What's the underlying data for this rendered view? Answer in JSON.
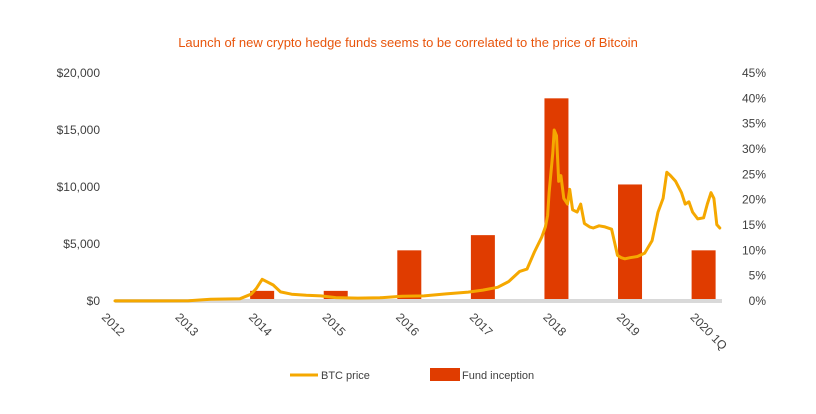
{
  "chart_data": {
    "type": "bar+line",
    "title": "Launch of new crypto  hedge funds seems to be correlated to the price of Bitcoin",
    "x_ticks": [
      "2012",
      "2013",
      "2014",
      "2015",
      "2016",
      "2017",
      "2018",
      "2019",
      "2020 1Q"
    ],
    "y_left_ticks": [
      "$0",
      "$5,000",
      "$10,000",
      "$15,000",
      "$20,000"
    ],
    "y_right_ticks": [
      "0%",
      "5%",
      "10%",
      "15%",
      "20%",
      "25%",
      "30%",
      "35%",
      "40%",
      "45%"
    ],
    "y_left_range": [
      0,
      20000
    ],
    "y_right_range": [
      0,
      45
    ],
    "x_range": [
      2012,
      2020.25
    ],
    "legend_position": "bottom",
    "colors": {
      "btc": "#f5a800",
      "fund": "#e03c00",
      "title": "#e8550c",
      "baseline": "#d9d9d9"
    },
    "series": [
      {
        "name": "BTC price",
        "type": "line",
        "axis": "left",
        "x": [
          2012.0,
          2012.5,
          2013.0,
          2013.3,
          2013.7,
          2013.85,
          2013.92,
          2014.0,
          2014.15,
          2014.25,
          2014.4,
          2014.6,
          2014.8,
          2015.0,
          2015.3,
          2015.6,
          2015.9,
          2016.0,
          2016.2,
          2016.5,
          2016.8,
          2017.0,
          2017.2,
          2017.35,
          2017.5,
          2017.6,
          2017.7,
          2017.8,
          2017.85,
          2017.88,
          2017.9,
          2017.95,
          2017.97,
          2018.0,
          2018.03,
          2018.06,
          2018.1,
          2018.15,
          2018.18,
          2018.22,
          2018.28,
          2018.33,
          2018.38,
          2018.45,
          2018.5,
          2018.58,
          2018.66,
          2018.75,
          2018.83,
          2018.88,
          2018.93,
          2019.0,
          2019.1,
          2019.2,
          2019.3,
          2019.38,
          2019.45,
          2019.5,
          2019.55,
          2019.62,
          2019.7,
          2019.75,
          2019.8,
          2019.85,
          2019.92,
          2020.0,
          2020.05,
          2020.1,
          2020.14,
          2020.18,
          2020.22
        ],
        "y": [
          10,
          12,
          20,
          150,
          200,
          600,
          1100,
          1900,
          1400,
          800,
          600,
          500,
          450,
          300,
          250,
          280,
          420,
          430,
          450,
          620,
          780,
          960,
          1200,
          1700,
          2600,
          2800,
          4300,
          5600,
          6500,
          7500,
          9500,
          13000,
          15000,
          14500,
          10500,
          11000,
          9000,
          8500,
          9800,
          8000,
          7800,
          8500,
          6800,
          6500,
          6400,
          6600,
          6500,
          6300,
          4000,
          3800,
          3700,
          3800,
          3900,
          4200,
          5300,
          7800,
          9000,
          11300,
          11000,
          10500,
          9500,
          8500,
          8700,
          7800,
          7200,
          7300,
          8500,
          9500,
          9000,
          6700,
          6400
        ]
      },
      {
        "name": "Fund inception",
        "type": "bar",
        "axis": "right",
        "x": [
          2014.0,
          2015.0,
          2016.0,
          2017.0,
          2018.0,
          2019.0,
          2020.0
        ],
        "y": [
          2,
          2,
          10,
          13,
          40,
          23,
          10
        ]
      }
    ]
  }
}
